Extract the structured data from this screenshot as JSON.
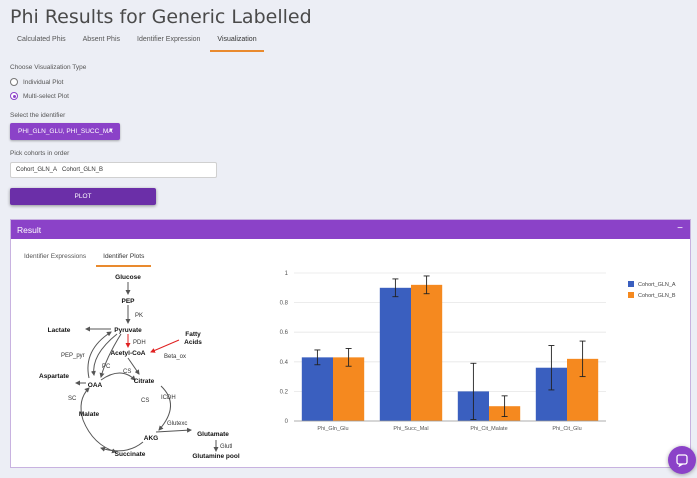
{
  "page": {
    "title": "Phi Results for Generic Labelled"
  },
  "tabs": [
    {
      "label": "Calculated Phis"
    },
    {
      "label": "Absent Phis"
    },
    {
      "label": "Identifier Expression"
    },
    {
      "label": "Visualization"
    }
  ],
  "viz": {
    "type_label": "Choose Visualization Type",
    "options": [
      {
        "label": "Individual Plot"
      },
      {
        "label": "Multi-select Plot"
      }
    ],
    "selected_option": "Multi-select Plot",
    "identifier_label": "Select the identifier",
    "identifier_value": "PHI_GLN_GLU, PHI_SUCC_MA",
    "cohort_label": "Pick cohorts in order",
    "cohorts": [
      "Cohort_GLN_A",
      "Cohort_GLN_B"
    ],
    "plot_button": "PLOT"
  },
  "result": {
    "title": "Result",
    "collapse_symbol": "−",
    "tabs": [
      {
        "label": "Identifier Expressions"
      },
      {
        "label": "Identifier Plots"
      }
    ]
  },
  "pathway": {
    "glucose": "Glucose",
    "pep": "PEP",
    "pk": "PK",
    "pyruvate": "Pyruvate",
    "lactate": "Lactate",
    "pdh": "PDH",
    "fatty1": "Fatty",
    "fatty2": "Acids",
    "acetyl_coa": "Acetyl-CoA",
    "beta_ox": "Beta_ox",
    "pep_pyr": "PEP_pyr",
    "pc": "PC",
    "cs1": "CS",
    "aspartate": "Aspartate",
    "oaa": "OAA",
    "citrate": "Citrate",
    "sc": "SC",
    "cs2": "CS",
    "icdh": "ICDH",
    "malate": "Malate",
    "glutexc": "Glutexc",
    "akg": "AKG",
    "glutamate": "Glutamate",
    "glutl": "Glutl",
    "succinate": "Succinate",
    "glutamine_pool": "Glutamine pool",
    "colors": {
      "inhibit": "#e02020",
      "arrow": "#555555"
    }
  },
  "chart_data": {
    "type": "bar",
    "categories": [
      "Phi_Gln_Glu",
      "Phi_Succ_Mal",
      "Phi_Cit_Malate",
      "Phi_Cit_Glu"
    ],
    "series": [
      {
        "name": "Cohort_GLN_A",
        "color": "#3a5fbf",
        "values": [
          0.43,
          0.9,
          0.2,
          0.36
        ],
        "errors": [
          0.05,
          0.06,
          0.19,
          0.15
        ]
      },
      {
        "name": "Cohort_GLN_B",
        "color": "#f5891f",
        "values": [
          0.43,
          0.92,
          0.1,
          0.42
        ],
        "errors": [
          0.06,
          0.06,
          0.07,
          0.12
        ]
      }
    ],
    "ylim": [
      0,
      1
    ],
    "yticks": [
      0,
      0.2,
      0.4,
      0.6,
      0.8,
      1
    ],
    "ytick_labels": [
      "0",
      "0.2",
      "0.4",
      "0.6",
      "0.8",
      "1"
    ],
    "legend_position": "top-right",
    "title": "",
    "xlabel": "",
    "ylabel": ""
  }
}
